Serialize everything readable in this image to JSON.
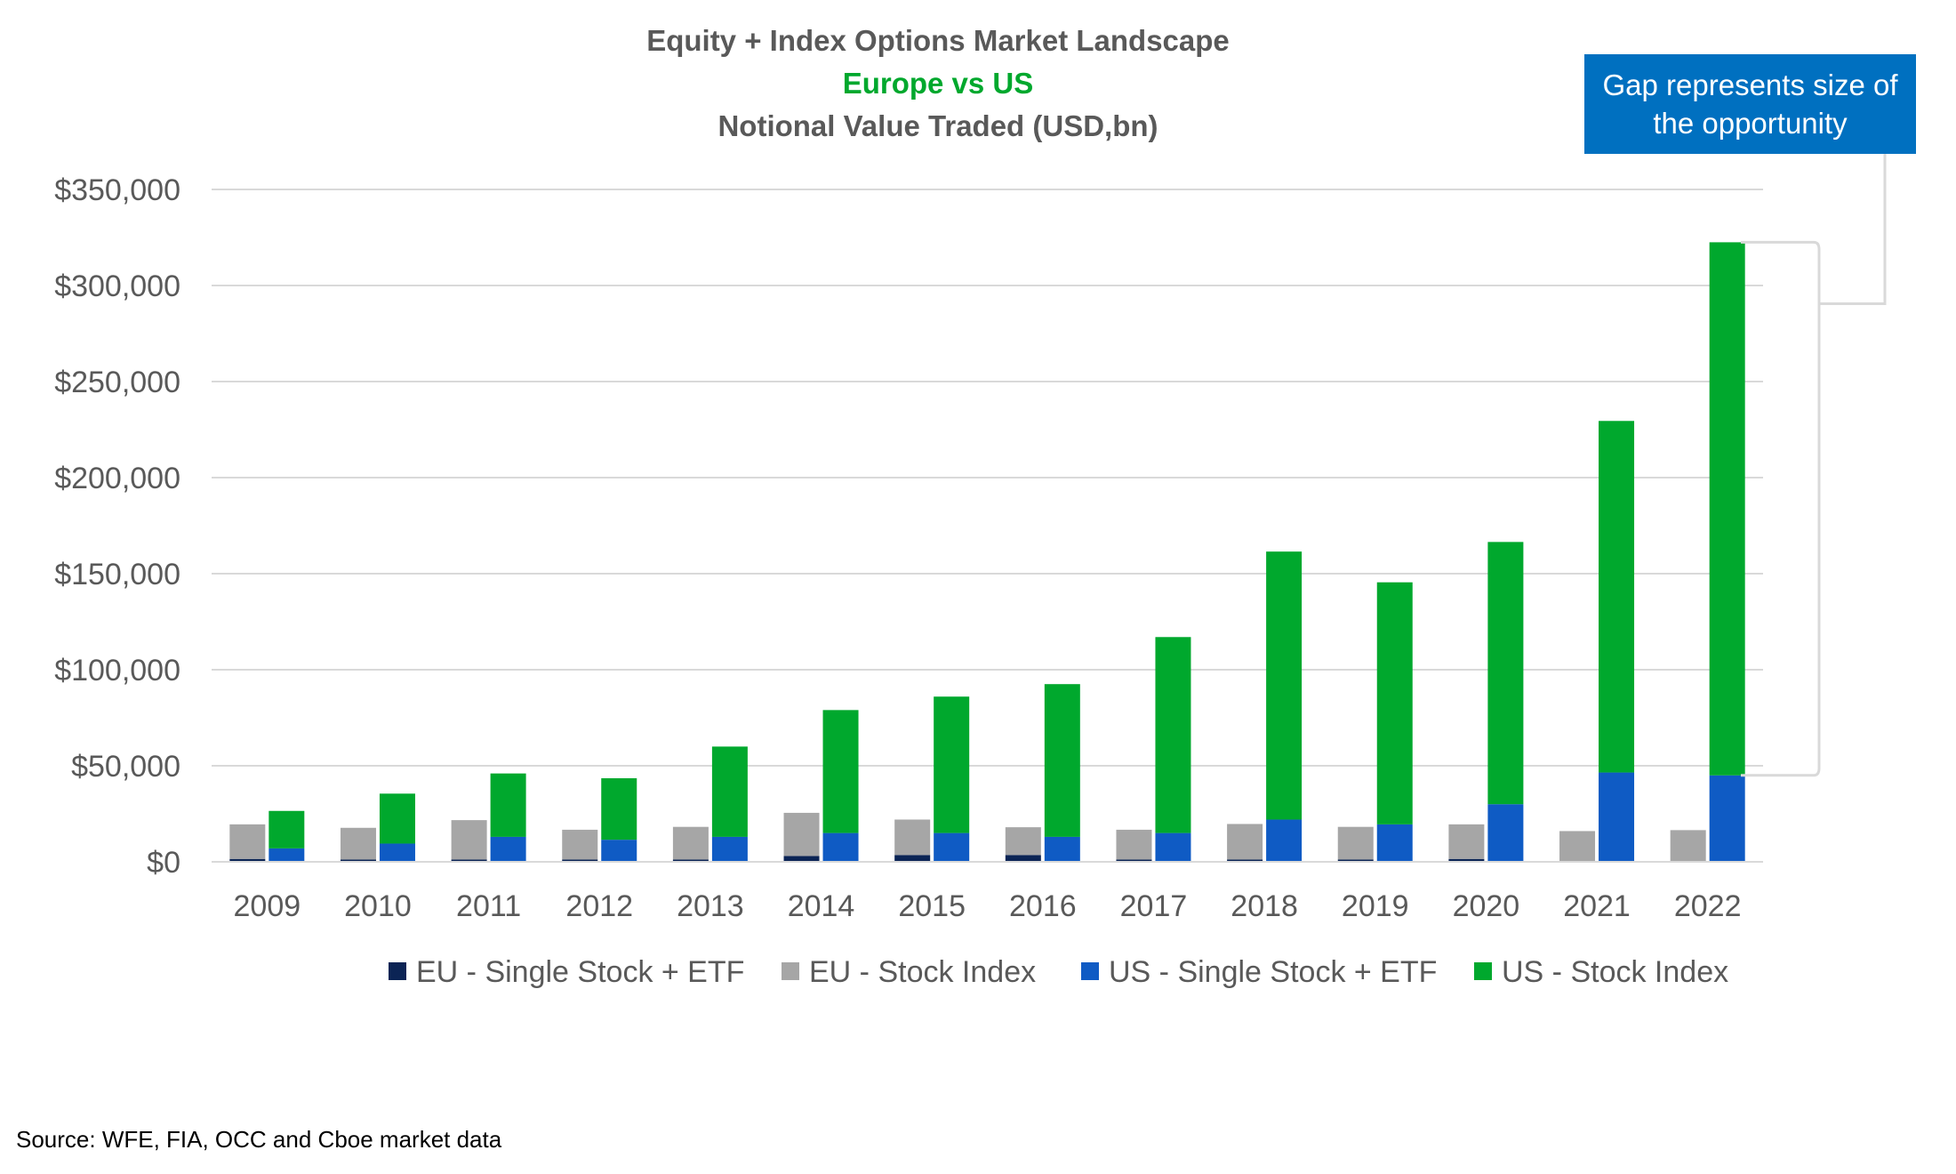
{
  "chart_data": {
    "type": "bar",
    "title": "Equity + Index Options Market Landscape",
    "subtitle": "Europe vs US",
    "subtitle2": "Notional Value Traded (USD,bn)",
    "categories": [
      "2009",
      "2010",
      "2011",
      "2012",
      "2013",
      "2014",
      "2015",
      "2016",
      "2017",
      "2018",
      "2019",
      "2020",
      "2021",
      "2022"
    ],
    "series": [
      {
        "name": "EU - Single Stock + ETF",
        "group": "EU",
        "color": "#0B2455",
        "values": [
          1500,
          1200,
          1200,
          1200,
          1200,
          3000,
          3500,
          3500,
          1200,
          1200,
          1200,
          1500,
          0,
          0
        ]
      },
      {
        "name": "EU - Stock Index",
        "group": "EU",
        "color": "#A6A6A6",
        "values": [
          18000,
          16500,
          20500,
          15500,
          17000,
          22500,
          18500,
          14500,
          15500,
          18500,
          17000,
          18000,
          16000,
          16500
        ]
      },
      {
        "name": "US - Single Stock + ETF",
        "group": "US",
        "color": "#0F5BC4",
        "values": [
          7000,
          9500,
          13000,
          11500,
          13000,
          15000,
          15000,
          13000,
          15000,
          22000,
          19500,
          30000,
          46500,
          45000
        ]
      },
      {
        "name": "US - Stock Index",
        "group": "US",
        "color": "#00A82D",
        "values": [
          19500,
          26000,
          33000,
          32000,
          47000,
          64000,
          71000,
          79500,
          102000,
          139500,
          126000,
          136500,
          183000,
          277500
        ]
      }
    ],
    "ylim": [
      0,
      350000
    ],
    "yticks": [
      0,
      50000,
      100000,
      150000,
      200000,
      250000,
      300000,
      350000
    ],
    "ytick_labels": [
      "$0",
      "$50,000",
      "$100,000",
      "$150,000",
      "$200,000",
      "$250,000",
      "$300,000",
      "$350,000"
    ],
    "xlabel": "",
    "ylabel": "",
    "grid": true,
    "legend_position": "bottom",
    "stacked": true,
    "annotation": "Gap represents size of the opportunity"
  },
  "source_text": "Source: WFE, FIA, OCC and Cboe market data"
}
